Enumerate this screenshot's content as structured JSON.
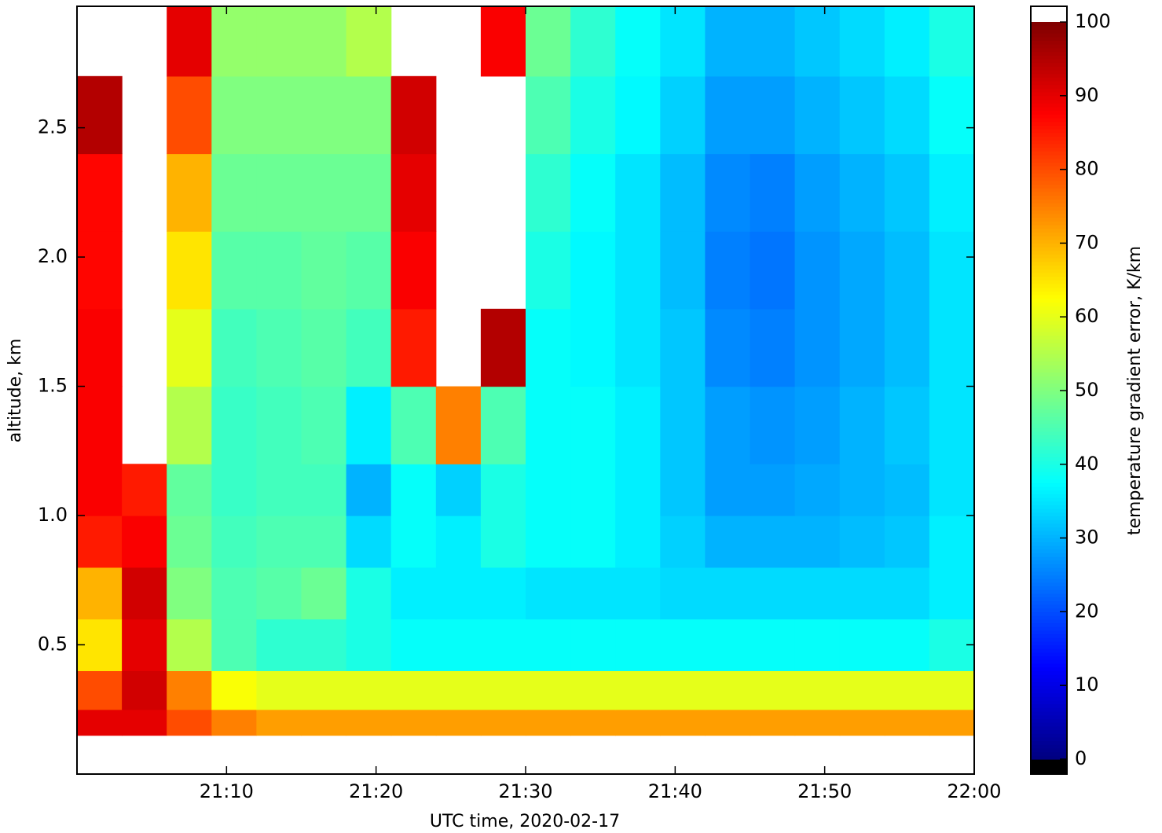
{
  "chart_data": {
    "type": "heatmap",
    "colormap": "jet",
    "x_label": "UTC time,  2020-02-17",
    "y_label": "altitude, km",
    "colorbar_label": "temperature gradient error, K/km",
    "xlim": [
      "21:00",
      "22:00"
    ],
    "xticks": [
      "21:10",
      "21:20",
      "21:30",
      "21:40",
      "21:50",
      "22:00"
    ],
    "ylim": [
      0,
      2.97
    ],
    "yticks": [
      0.5,
      {
        "value": 1,
        "label": "1.0"
      },
      1.5,
      {
        "value": 2,
        "label": "2.0"
      },
      2.5
    ],
    "clim": [
      0,
      100
    ],
    "cticks": [
      0,
      10,
      20,
      30,
      40,
      50,
      60,
      70,
      80,
      90,
      100
    ],
    "x": [
      "21:00",
      "21:03",
      "21:06",
      "21:09",
      "21:12",
      "21:15",
      "21:18",
      "21:21",
      "21:24",
      "21:27",
      "21:30",
      "21:33",
      "21:36",
      "21:39",
      "21:42",
      "21:45",
      "21:48",
      "21:51",
      "21:54",
      "21:57",
      "22:00"
    ],
    "y": [
      0,
      0.15,
      0.25,
      0.4,
      0.6,
      0.8,
      1.0,
      1.2,
      1.5,
      1.8,
      2.1,
      2.4,
      2.7,
      2.97
    ],
    "values": [
      [
        null,
        null,
        null,
        null,
        null,
        null,
        null,
        null,
        null,
        null,
        null,
        null,
        null,
        null,
        null,
        null,
        null,
        null,
        null,
        null
      ],
      [
        90,
        90,
        80,
        75,
        72,
        72,
        72,
        72,
        72,
        72,
        72,
        72,
        72,
        72,
        72,
        72,
        72,
        72,
        72,
        72
      ],
      [
        80,
        92,
        75,
        62,
        60,
        60,
        60,
        60,
        60,
        60,
        60,
        60,
        60,
        60,
        60,
        60,
        60,
        60,
        60,
        60
      ],
      [
        65,
        90,
        55,
        45,
        42,
        42,
        40,
        38,
        38,
        38,
        38,
        38,
        38,
        38,
        38,
        38,
        38,
        38,
        38,
        40
      ],
      [
        70,
        92,
        50,
        45,
        46,
        48,
        40,
        36,
        36,
        36,
        35,
        35,
        35,
        34,
        34,
        34,
        34,
        34,
        34,
        36
      ],
      [
        85,
        88,
        48,
        44,
        45,
        45,
        34,
        38,
        36,
        40,
        38,
        38,
        36,
        33,
        30,
        30,
        30,
        31,
        32,
        36
      ],
      [
        88,
        85,
        47,
        43,
        44,
        44,
        30,
        38,
        33,
        40,
        38,
        38,
        36,
        32,
        28,
        28,
        29,
        30,
        31,
        35
      ],
      [
        88,
        null,
        55,
        43,
        44,
        45,
        36,
        45,
        75,
        45,
        38,
        38,
        36,
        32,
        28,
        27,
        28,
        30,
        32,
        35
      ],
      [
        88,
        null,
        60,
        44,
        45,
        46,
        44,
        85,
        null,
        95,
        38,
        37,
        35,
        32,
        26,
        25,
        27,
        29,
        31,
        35
      ],
      [
        87,
        null,
        65,
        46,
        46,
        47,
        46,
        88,
        null,
        null,
        40,
        37,
        35,
        31,
        25,
        24,
        27,
        29,
        31,
        35
      ],
      [
        87,
        null,
        70,
        48,
        48,
        48,
        48,
        90,
        null,
        null,
        42,
        38,
        35,
        31,
        26,
        25,
        28,
        30,
        32,
        36
      ],
      [
        95,
        null,
        80,
        50,
        50,
        50,
        50,
        92,
        null,
        null,
        45,
        40,
        37,
        33,
        28,
        28,
        30,
        32,
        34,
        38
      ],
      [
        null,
        null,
        90,
        52,
        52,
        52,
        55,
        null,
        null,
        88,
        48,
        42,
        38,
        35,
        30,
        30,
        32,
        34,
        36,
        40
      ]
    ]
  }
}
